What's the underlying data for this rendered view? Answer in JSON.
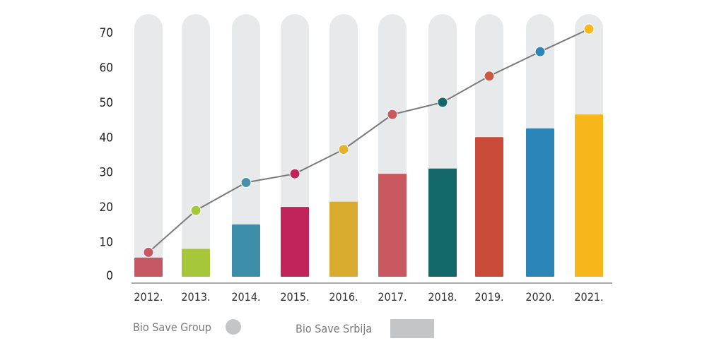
{
  "chart_data": {
    "type": "bar",
    "categories": [
      "2012.",
      "2013.",
      "2014.",
      "2015.",
      "2016.",
      "2017.",
      "2018.",
      "2019.",
      "2020.",
      "2021."
    ],
    "series": [
      {
        "name": "Bio Save Srbija",
        "type": "bar",
        "values": [
          5.5,
          8,
          15,
          20,
          21.5,
          29.5,
          31,
          40,
          42.5,
          46.5
        ]
      },
      {
        "name": "Bio Save Group",
        "type": "line",
        "values": [
          7,
          19,
          27,
          29.5,
          36.5,
          46.5,
          50,
          57.5,
          64.5,
          71
        ]
      }
    ],
    "bar_colors": [
      "#c65864",
      "#a7c73a",
      "#3c8ea8",
      "#c0245a",
      "#d8aa2e",
      "#c95860",
      "#14686a",
      "#c94a38",
      "#2b85b9",
      "#f7b619"
    ],
    "point_colors": [
      "#c65864",
      "#a7c73a",
      "#4a90a8",
      "#c0245a",
      "#e5b22c",
      "#c95860",
      "#14686a",
      "#c95a40",
      "#2b85b9",
      "#f7b619"
    ],
    "background_pill_color": "#e8e9eb",
    "line_color": "#7a7a7a",
    "yticks": [
      0,
      10,
      20,
      30,
      40,
      50,
      60,
      70
    ],
    "ylim": [
      0,
      75
    ],
    "legend_position": "bottom-left",
    "grid": false
  },
  "legend": {
    "items": [
      {
        "label": "Bio Save Group",
        "marker": "circle",
        "color": "#c4c5c7"
      },
      {
        "label": "Bio Save Srbija",
        "marker": "rect",
        "color": "#c4c5c7"
      }
    ]
  }
}
